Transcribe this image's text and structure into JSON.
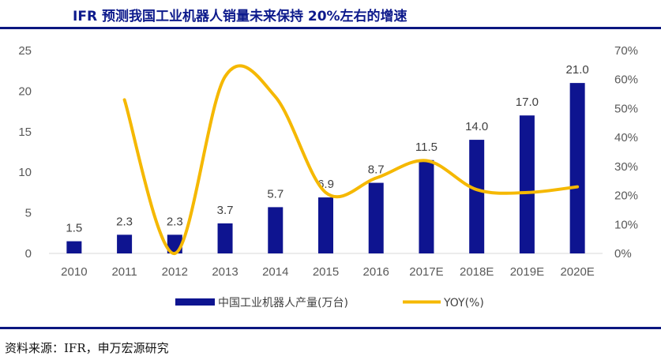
{
  "title": "IFR 预测我国工业机器人销量未来保持 20%左右的增速",
  "source": "资料来源：IFR，申万宏源研究",
  "colors": {
    "bar": "#0e1490",
    "line": "#f5b800",
    "rule": "#0b1780",
    "title": "#0d1a8c"
  },
  "chart_data": {
    "type": "bar",
    "title": "IFR 预测我国工业机器人销量未来保持 20%左右的增速",
    "categories": [
      "2010",
      "2011",
      "2012",
      "2013",
      "2014",
      "2015",
      "2016",
      "2017E",
      "2018E",
      "2019E",
      "2020E"
    ],
    "series": [
      {
        "name": "中国工业机器人产量(万台)",
        "type": "bar",
        "axis": "left",
        "values": [
          1.5,
          2.3,
          2.3,
          3.7,
          5.7,
          6.9,
          8.7,
          11.5,
          14.0,
          17.0,
          21.0
        ],
        "labels": [
          "1.5",
          "2.3",
          "2.3",
          "3.7",
          "5.7",
          "6.9",
          "8.7",
          "11.5",
          "14.0",
          "17.0",
          "21.0"
        ]
      },
      {
        "name": "YOY(%)",
        "type": "line",
        "axis": "right",
        "values": [
          null,
          53,
          0,
          61,
          54,
          21,
          26,
          32,
          22,
          21,
          23
        ]
      }
    ],
    "y_left": {
      "lim": [
        0,
        25
      ],
      "ticks": [
        "0",
        "5",
        "10",
        "15",
        "20",
        "25"
      ]
    },
    "y_right": {
      "lim": [
        0,
        70
      ],
      "ticks": [
        "0%",
        "10%",
        "20%",
        "30%",
        "40%",
        "50%",
        "60%",
        "70%"
      ]
    },
    "legend": {
      "position": "bottom"
    },
    "grid": false
  }
}
